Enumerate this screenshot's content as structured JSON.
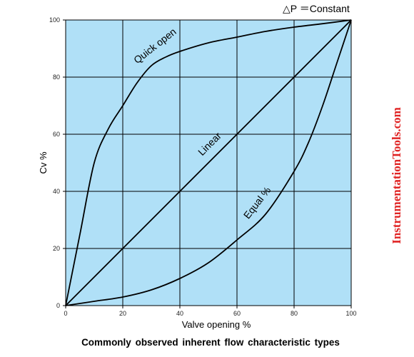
{
  "chart_data": {
    "type": "line",
    "title": "Commonly observed inherent flow characteristic types",
    "condition_label": "△P ＝Constant",
    "xlabel": "Valve opening %",
    "ylabel": "Cv %",
    "xlim": [
      0,
      100
    ],
    "ylim": [
      0,
      100
    ],
    "xticks": [
      "0",
      "20",
      "40",
      "60",
      "80",
      "100"
    ],
    "yticks": [
      "0",
      "20",
      "40",
      "60",
      "80",
      "100"
    ],
    "grid": true,
    "background_color": "#b0e0f7",
    "line_color": "#000000",
    "series": [
      {
        "name": "Quick open",
        "x": [
          0,
          5,
          10,
          15,
          20,
          25,
          30,
          35,
          40,
          50,
          60,
          70,
          80,
          90,
          100
        ],
        "y": [
          0,
          25,
          50,
          62,
          70,
          78,
          84,
          87,
          89,
          92,
          94,
          96,
          97.5,
          98.7,
          100
        ]
      },
      {
        "name": "Linear",
        "x": [
          0,
          100
        ],
        "y": [
          0,
          100
        ]
      },
      {
        "name": "Equal %",
        "x": [
          0,
          10,
          20,
          30,
          40,
          50,
          60,
          70,
          80,
          85,
          90,
          95,
          100
        ],
        "y": [
          0,
          1.5,
          3,
          5.5,
          9.5,
          15,
          23,
          32,
          47,
          57,
          70,
          85,
          100
        ]
      }
    ]
  },
  "watermark": {
    "text": "InstrumentationTools.com",
    "color": "#e02424"
  }
}
